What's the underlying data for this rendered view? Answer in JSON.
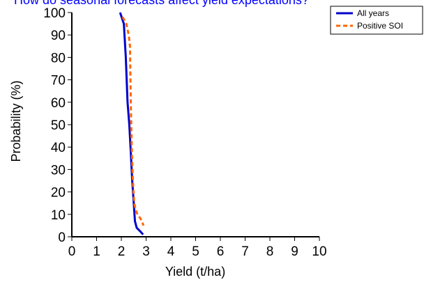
{
  "chart_data": {
    "type": "line",
    "title": "How do seasonal forecasts affect yield expectations?",
    "xlabel": "Yield (t/ha)",
    "ylabel": "Probability (%)",
    "xlim": [
      0,
      10
    ],
    "ylim": [
      0,
      100
    ],
    "xticks": [
      "0",
      "1",
      "2",
      "3",
      "4",
      "5",
      "6",
      "7",
      "8",
      "9",
      "10"
    ],
    "yticks": [
      "0",
      "10",
      "20",
      "30",
      "40",
      "50",
      "60",
      "70",
      "80",
      "90",
      "100"
    ],
    "grid": false,
    "legend_position": "top-right",
    "series": [
      {
        "name": "All years",
        "color": "#0000cc",
        "style": "solid",
        "x": [
          1.95,
          2.1,
          2.18,
          2.25,
          2.32,
          2.38,
          2.44,
          2.5,
          2.55,
          2.62,
          2.8,
          2.88
        ],
        "y": [
          100,
          95,
          80,
          60,
          50,
          38,
          25,
          15,
          7,
          4,
          2,
          1
        ]
      },
      {
        "name": "Positive SOI",
        "color": "#ff6600",
        "style": "dashed",
        "x": [
          2.05,
          2.2,
          2.3,
          2.35,
          2.38,
          2.42,
          2.45,
          2.48,
          2.52,
          2.58,
          2.65,
          2.78,
          2.9
        ],
        "y": [
          98,
          95,
          90,
          85,
          60,
          40,
          30,
          22,
          15,
          12,
          10,
          8,
          5
        ]
      }
    ]
  }
}
